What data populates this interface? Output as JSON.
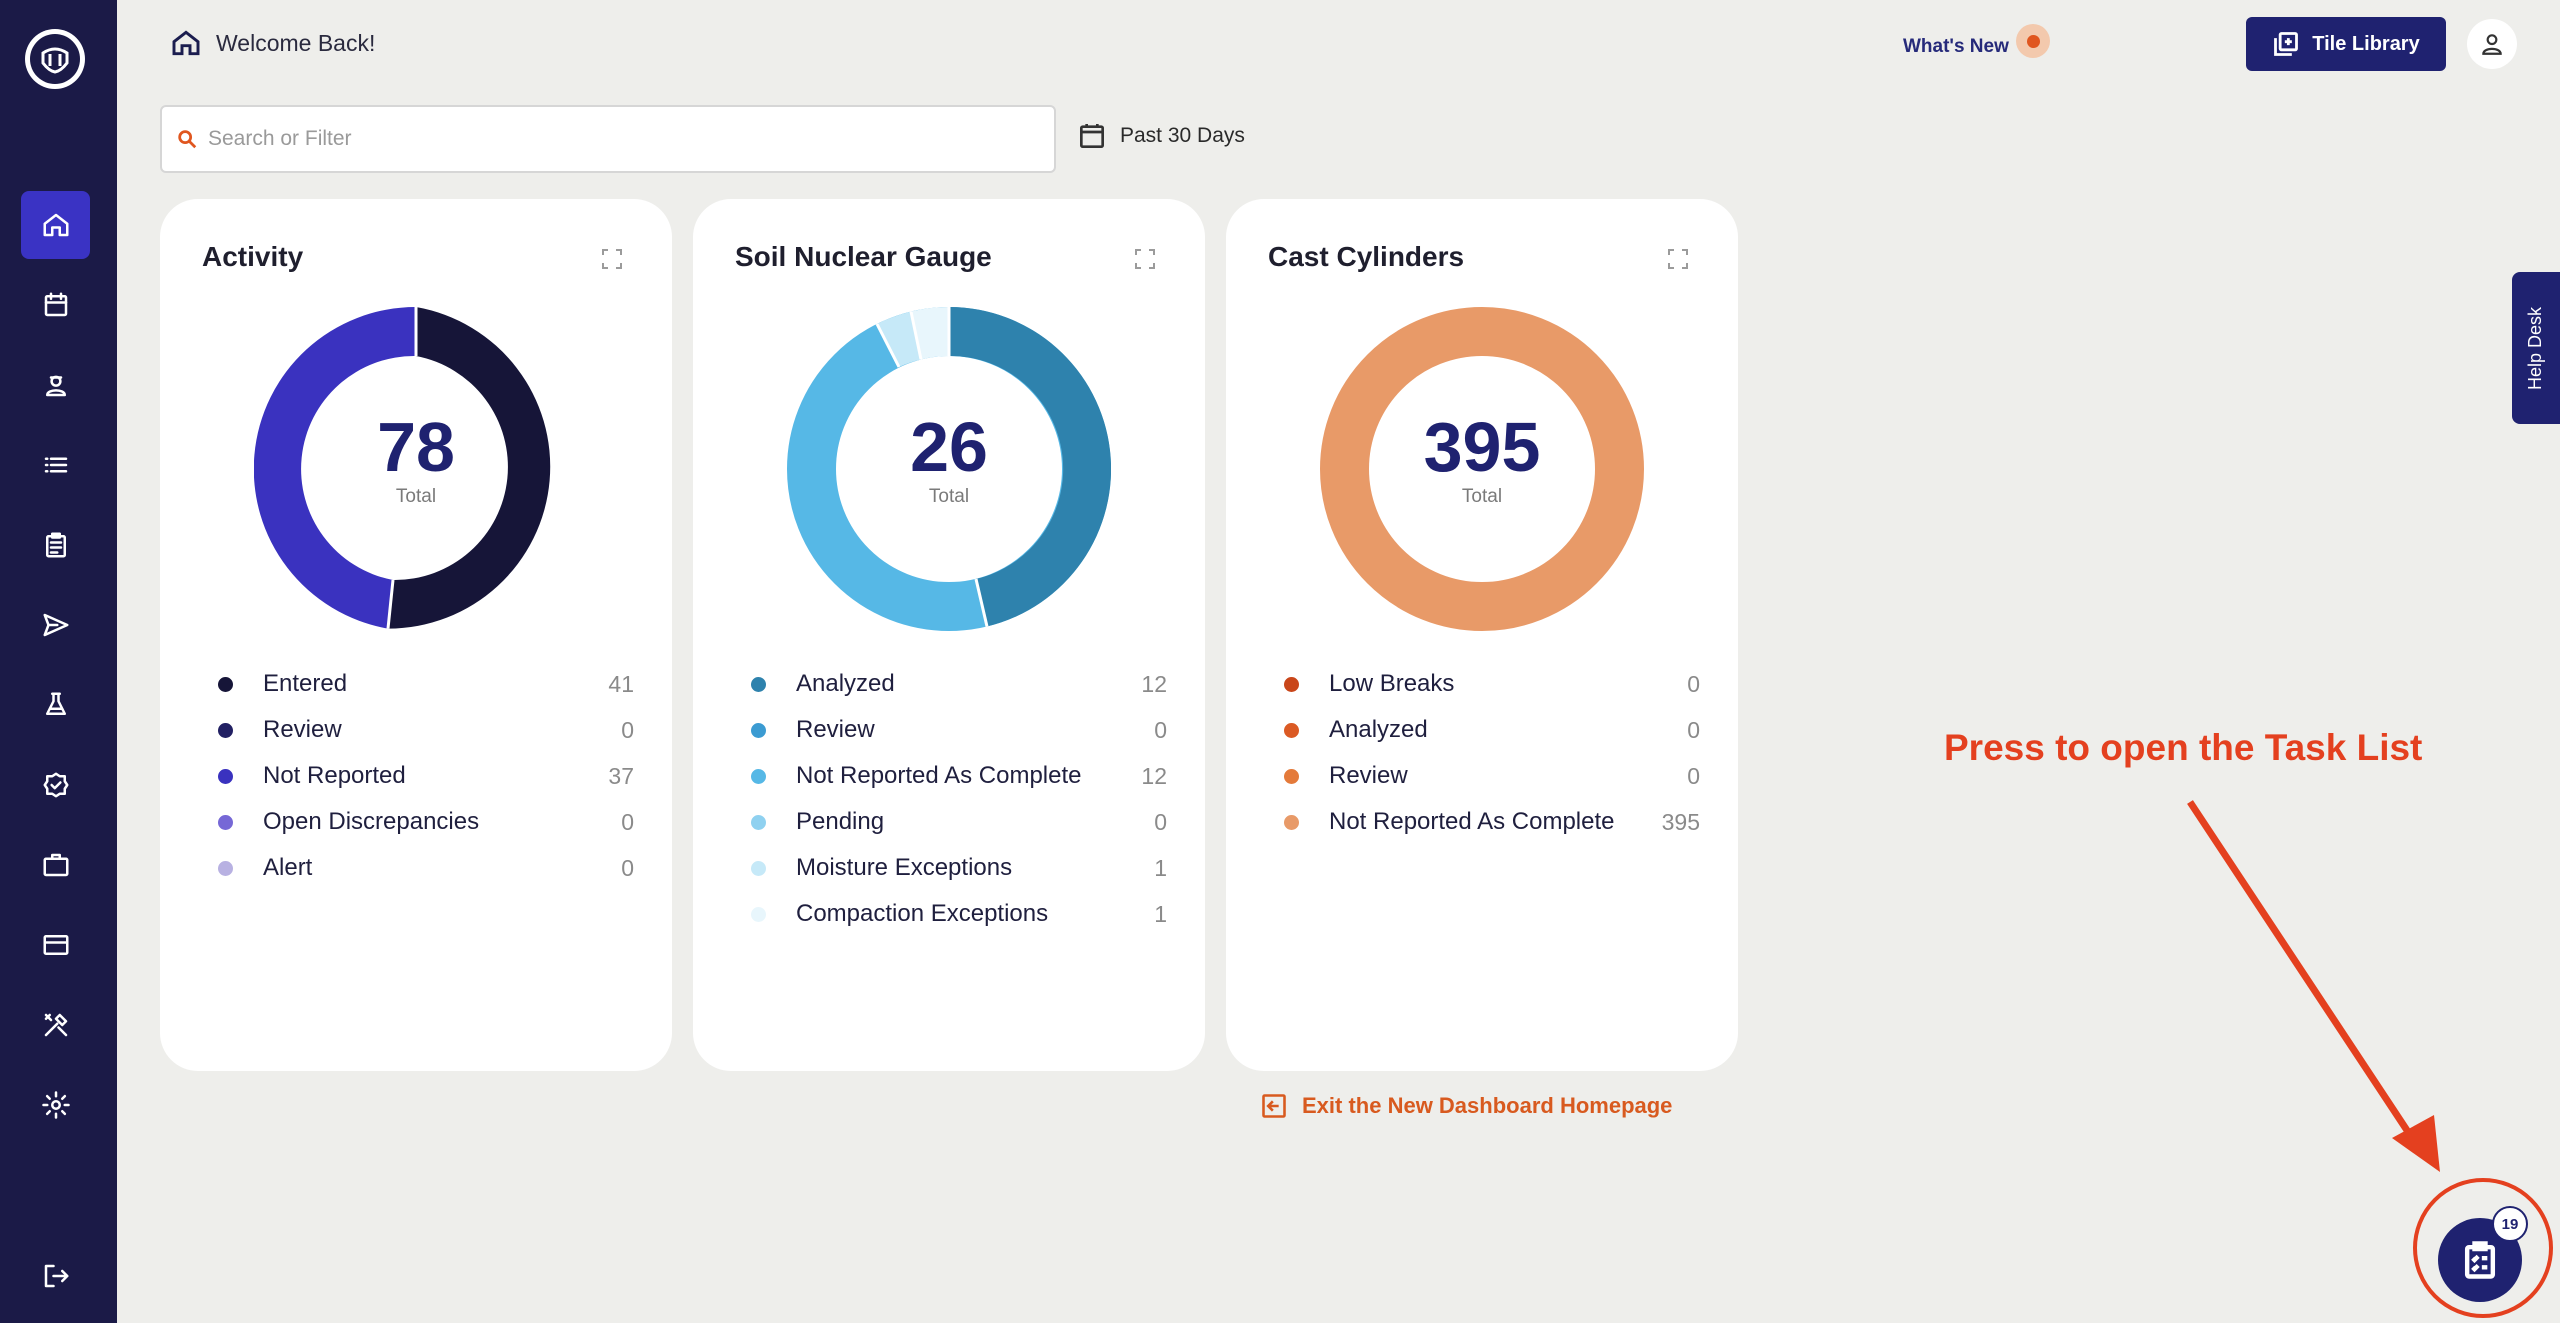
{
  "header": {
    "welcome": "Welcome Back!",
    "whats_new": "What's New",
    "tile_library": "Tile Library"
  },
  "search": {
    "placeholder": "Search or Filter",
    "value": ""
  },
  "date_filter": "Past 30 Days",
  "sidebar": {
    "items": [
      {
        "name": "home",
        "active": true
      },
      {
        "name": "calendar",
        "active": false
      },
      {
        "name": "technician",
        "active": false
      },
      {
        "name": "list",
        "active": false
      },
      {
        "name": "clipboard",
        "active": false
      },
      {
        "name": "send",
        "active": false
      },
      {
        "name": "lab-flask",
        "active": false
      },
      {
        "name": "verified-badge",
        "active": false
      },
      {
        "name": "briefcase",
        "active": false
      },
      {
        "name": "credit-card",
        "active": false
      },
      {
        "name": "tools",
        "active": false
      },
      {
        "name": "settings",
        "active": false
      },
      {
        "name": "logout",
        "active": false
      }
    ]
  },
  "cards": [
    {
      "title": "Activity",
      "total": "78",
      "total_label": "Total",
      "legend": [
        {
          "label": "Entered",
          "value": "41",
          "color": "#161538"
        },
        {
          "label": "Review",
          "value": "0",
          "color": "#222063"
        },
        {
          "label": "Not Reported",
          "value": "37",
          "color": "#3a32bf"
        },
        {
          "label": "Open Discrepancies",
          "value": "0",
          "color": "#7668d6"
        },
        {
          "label": "Alert",
          "value": "0",
          "color": "#b8b1e2"
        }
      ]
    },
    {
      "title": "Soil Nuclear Gauge",
      "total": "26",
      "total_label": "Total",
      "legend": [
        {
          "label": "Analyzed",
          "value": "12",
          "color": "#2e82ad"
        },
        {
          "label": "Review",
          "value": "0",
          "color": "#3b9bd2"
        },
        {
          "label": "Not Reported As Complete",
          "value": "12",
          "color": "#56b8e6"
        },
        {
          "label": "Pending",
          "value": "0",
          "color": "#8fd1f0"
        },
        {
          "label": "Moisture Exceptions",
          "value": "1",
          "color": "#c6e9f8"
        },
        {
          "label": "Compaction Exceptions",
          "value": "1",
          "color": "#e8f6fc"
        }
      ]
    },
    {
      "title": "Cast Cylinders",
      "total": "395",
      "total_label": "Total",
      "legend": [
        {
          "label": "Low Breaks",
          "value": "0",
          "color": "#c9461a"
        },
        {
          "label": "Analyzed",
          "value": "0",
          "color": "#db5a24"
        },
        {
          "label": "Review",
          "value": "0",
          "color": "#e47a3a"
        },
        {
          "label": "Not Reported As Complete",
          "value": "395",
          "color": "#e89a68"
        }
      ]
    }
  ],
  "exit_link": "Exit the New Dashboard Homepage",
  "help_desk": "Help Desk",
  "annotation": "Press to open the Task List",
  "task_badge": "19",
  "colors": {
    "sidebar": "#1b1a47",
    "primary": "#1f2270",
    "accent": "#e4401f"
  }
}
